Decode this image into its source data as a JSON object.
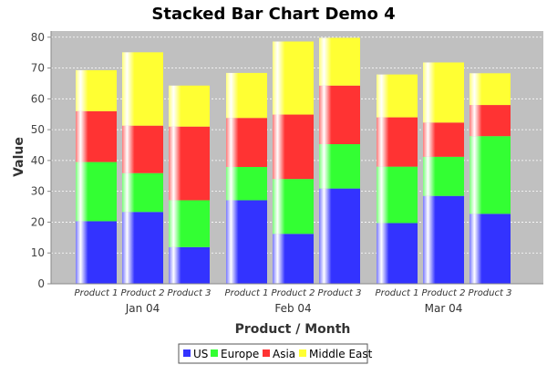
{
  "chart_data": {
    "type": "bar",
    "stacked": true,
    "title": "Stacked Bar Chart Demo 4",
    "xlabel": "Product / Month",
    "ylabel": "Value",
    "ylim": [
      0,
      82
    ],
    "yticks": [
      0,
      10,
      20,
      30,
      40,
      50,
      60,
      70,
      80
    ],
    "grid": true,
    "legend_position": "bottom",
    "groups": [
      {
        "label": "Jan 04",
        "categories": [
          "Product 1",
          "Product 2",
          "Product 3"
        ]
      },
      {
        "label": "Feb 04",
        "categories": [
          "Product 1",
          "Product 2",
          "Product 3"
        ]
      },
      {
        "label": "Mar 04",
        "categories": [
          "Product 1",
          "Product 2",
          "Product 3"
        ]
      }
    ],
    "series": [
      {
        "name": "US",
        "color": "#3333ff",
        "values": [
          20.3,
          23.3,
          11.9,
          27.1,
          16.2,
          30.9,
          19.7,
          28.5,
          22.7
        ]
      },
      {
        "name": "Europe",
        "color": "#33ff33",
        "values": [
          19.2,
          12.6,
          15.2,
          10.8,
          17.8,
          14.4,
          18.3,
          12.7,
          25.2
        ]
      },
      {
        "name": "Asia",
        "color": "#ff3333",
        "values": [
          16.5,
          15.4,
          23.9,
          15.9,
          20.9,
          19.0,
          16.0,
          11.1,
          10.1
        ]
      },
      {
        "name": "Middle East",
        "color": "#ffff33",
        "values": [
          13.3,
          23.8,
          13.3,
          14.6,
          23.7,
          15.5,
          13.9,
          19.5,
          10.3
        ]
      }
    ]
  }
}
